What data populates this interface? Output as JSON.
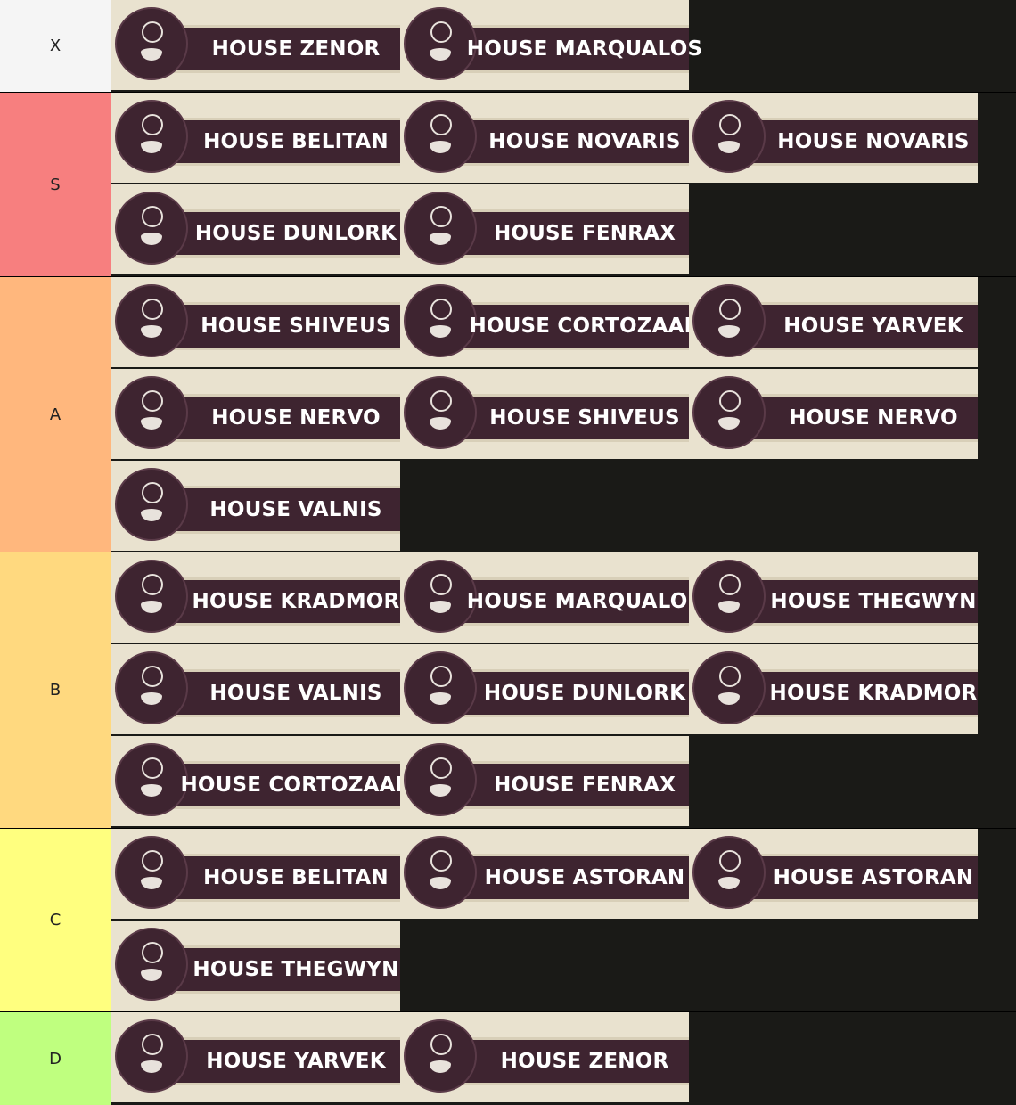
{
  "tiers": [
    {
      "label": "X",
      "items": [
        "HOUSE ZENOR",
        "HOUSE MARQUALOS"
      ]
    },
    {
      "label": "S",
      "items": [
        "HOUSE BELITAN",
        "HOUSE NOVARIS",
        "HOUSE NOVARIS",
        "HOUSE DUNLORK",
        "HOUSE FENRAX"
      ]
    },
    {
      "label": "A",
      "items": [
        "HOUSE SHIVEUS",
        "HOUSE CORTOZAAR",
        "HOUSE YARVEK",
        "HOUSE NERVO",
        "HOUSE SHIVEUS",
        "HOUSE NERVO",
        "HOUSE VALNIS"
      ]
    },
    {
      "label": "B",
      "items": [
        "HOUSE KRADMOR",
        "HOUSE MARQUALOS",
        "HOUSE THEGWYN",
        "HOUSE VALNIS",
        "HOUSE DUNLORK",
        "HOUSE KRADMOR",
        "HOUSE CORTOZAAR",
        "HOUSE FENRAX"
      ]
    },
    {
      "label": "C",
      "items": [
        "HOUSE BELITAN",
        "HOUSE ASTORAN",
        "HOUSE ASTORAN",
        "HOUSE THEGWYN"
      ]
    },
    {
      "label": "D",
      "items": [
        "HOUSE YARVEK",
        "HOUSE ZENOR"
      ]
    }
  ]
}
